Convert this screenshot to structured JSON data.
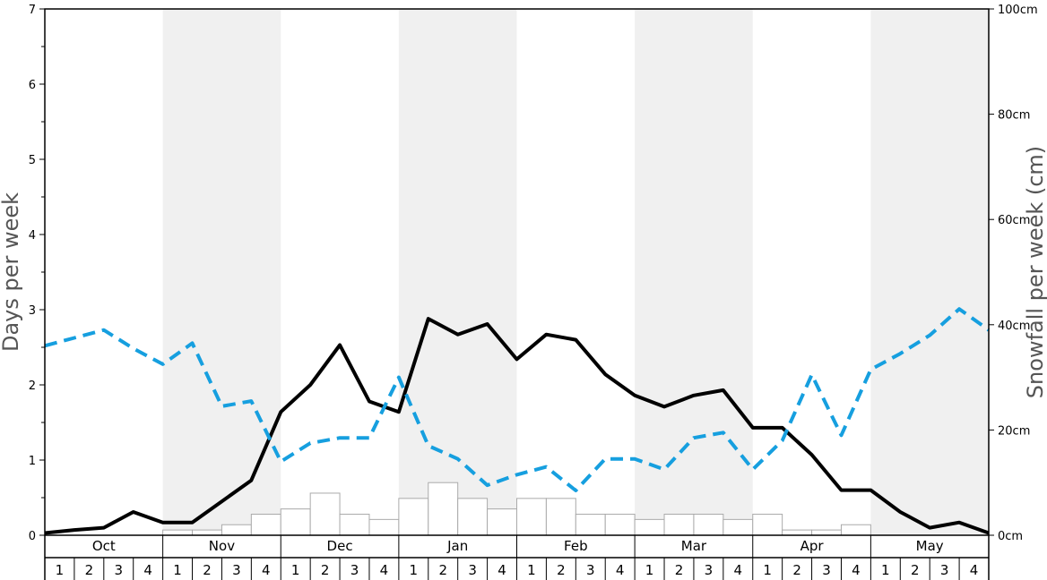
{
  "chart_data": {
    "type": "bar",
    "ylabel_left": "Days per week",
    "ylabel_right": "Snowfall per week (cm)",
    "ylim_left": [
      0,
      7
    ],
    "ylim_right": [
      0,
      100
    ],
    "left_ticks": [
      "0",
      "1",
      "2",
      "3",
      "4",
      "5",
      "6",
      "7"
    ],
    "right_ticks": [
      "0cm",
      "20cm",
      "40cm",
      "60cm",
      "80cm",
      "100cm"
    ],
    "months": [
      "Oct",
      "Nov",
      "Dec",
      "Jan",
      "Feb",
      "Mar",
      "Apr",
      "May"
    ],
    "weeks": [
      "1",
      "2",
      "3",
      "4"
    ],
    "shaded_month_fill": "#f0f0f0",
    "series": [
      {
        "kind": "bar",
        "axis": "right",
        "color": "#ffffff",
        "stroke": "#aaaaaa",
        "values": [
          0,
          0,
          0,
          0,
          1,
          1,
          2,
          4,
          5,
          8,
          4,
          3,
          7,
          10,
          7,
          5,
          7,
          7,
          4,
          4,
          3,
          4,
          4,
          3,
          4,
          1,
          1,
          2,
          0,
          0,
          0,
          0
        ]
      },
      {
        "kind": "line",
        "axis": "left",
        "color": "#000000",
        "dash": "solid",
        "values": [
          0.03,
          0.07,
          0.1,
          0.31,
          0.17,
          0.17,
          0.45,
          0.73,
          1.64,
          2.0,
          2.53,
          1.78,
          1.64,
          2.88,
          2.67,
          2.81,
          2.34,
          2.67,
          2.6,
          2.14,
          1.86,
          1.71,
          1.86,
          1.93,
          1.43,
          1.43,
          1.07,
          0.6,
          0.6,
          0.31,
          0.1,
          0.17,
          0.03
        ]
      },
      {
        "kind": "line",
        "axis": "right",
        "color": "#169fdf",
        "dash": "dashed",
        "values": [
          36,
          37.5,
          39,
          35.5,
          32.5,
          36.5,
          24.5,
          25.5,
          14,
          17.5,
          18.5,
          18.5,
          30,
          17,
          14.5,
          9.5,
          11.5,
          13,
          8.5,
          14.5,
          14.5,
          12.5,
          18.5,
          19.5,
          12.5,
          18,
          30.5,
          19,
          31.5,
          34.5,
          38,
          43,
          39
        ]
      }
    ]
  }
}
